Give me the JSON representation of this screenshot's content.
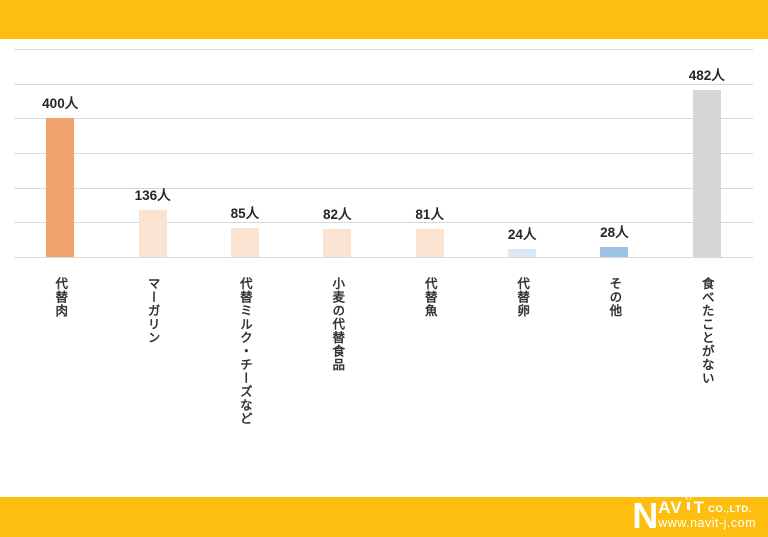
{
  "theme": {
    "accent_yellow": "#fdbe10",
    "gridline_color": "#d9d9d9",
    "text_color": "#262626"
  },
  "chart_data": {
    "type": "bar",
    "title": "",
    "xlabel": "",
    "ylabel": "",
    "unit": "人",
    "categories": [
      "代替肉",
      "マーガリン",
      "代替ミルク・チーズなど",
      "小麦の代替食品",
      "代替魚",
      "代替卵",
      "その他",
      "食べたことがない"
    ],
    "values": [
      400,
      136,
      85,
      82,
      81,
      24,
      28,
      482
    ],
    "value_labels": [
      "400人",
      "136人",
      "85人",
      "82人",
      "81人",
      "24人",
      "28人",
      "482人"
    ],
    "bar_colors": [
      "#eea36f",
      "#fbe3d2",
      "#fbe3d2",
      "#fbe3d2",
      "#fbe3d2",
      "#dbe9f6",
      "#9dc3e6",
      "#d6d6d6"
    ],
    "ylim": [
      0,
      600
    ],
    "grid_step": 100,
    "grid": true,
    "legend": false,
    "gridline_color": "#d9d9d9"
  },
  "footer": {
    "logo": {
      "company": "NAVIT CO.,LTD.",
      "part1": "N",
      "part2": "AV",
      "part3": "T",
      "co": "CO.,LTD.",
      "url": "www.navit-j.com"
    }
  }
}
